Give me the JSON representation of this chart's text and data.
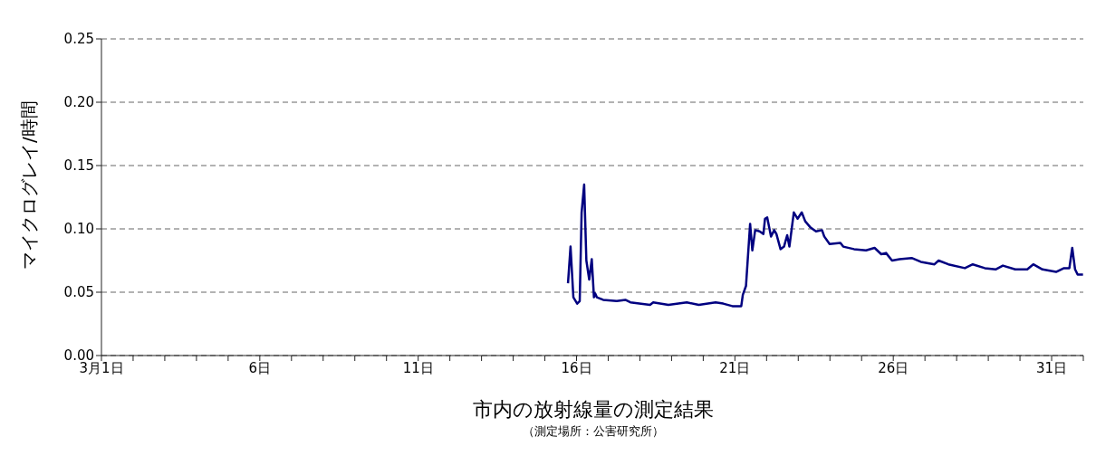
{
  "chart_data": {
    "type": "line",
    "title": "市内の放射線量の測定結果",
    "subtitle": "（測定場所：公害研究所）",
    "ylabel": "マイクログレイ/時間",
    "marker": "none",
    "line_style": "solid",
    "grid": "y",
    "legend": false,
    "xlim": [
      1,
      32
    ],
    "xticks": [
      {
        "value": 1,
        "label": "3月1日"
      },
      {
        "value": 2,
        "label": null
      },
      {
        "value": 3,
        "label": null
      },
      {
        "value": 4,
        "label": null
      },
      {
        "value": 5,
        "label": null
      },
      {
        "value": 6,
        "label": "6日"
      },
      {
        "value": 7,
        "label": null
      },
      {
        "value": 8,
        "label": null
      },
      {
        "value": 9,
        "label": null
      },
      {
        "value": 10,
        "label": null
      },
      {
        "value": 11,
        "label": "11日"
      },
      {
        "value": 12,
        "label": null
      },
      {
        "value": 13,
        "label": null
      },
      {
        "value": 14,
        "label": null
      },
      {
        "value": 15,
        "label": null
      },
      {
        "value": 16,
        "label": "16日"
      },
      {
        "value": 17,
        "label": null
      },
      {
        "value": 18,
        "label": null
      },
      {
        "value": 19,
        "label": null
      },
      {
        "value": 20,
        "label": null
      },
      {
        "value": 21,
        "label": "21日"
      },
      {
        "value": 22,
        "label": null
      },
      {
        "value": 23,
        "label": null
      },
      {
        "value": 24,
        "label": null
      },
      {
        "value": 25,
        "label": null
      },
      {
        "value": 26,
        "label": "26日"
      },
      {
        "value": 27,
        "label": null
      },
      {
        "value": 28,
        "label": null
      },
      {
        "value": 29,
        "label": null
      },
      {
        "value": 30,
        "label": null
      },
      {
        "value": 31,
        "label": "31日"
      },
      {
        "value": 32,
        "label": null
      }
    ],
    "ylim": [
      0,
      0.25
    ],
    "yticks": [
      {
        "value": 0,
        "label": "0.00"
      },
      {
        "value": 0.05,
        "label": "0.05"
      },
      {
        "value": 0.1,
        "label": "0.10"
      },
      {
        "value": 0.15,
        "label": "0.15"
      },
      {
        "value": 0.2,
        "label": "0.20"
      },
      {
        "value": 0.25,
        "label": "0.25"
      }
    ],
    "series": [
      {
        "color": "#000080",
        "x": [
          15.73,
          15.81,
          15.9,
          16.02,
          16.1,
          16.16,
          16.24,
          16.31,
          16.4,
          16.48,
          16.55,
          16.59,
          16.64,
          16.84,
          17.27,
          17.54,
          17.7,
          18.32,
          18.42,
          18.9,
          19.48,
          19.86,
          20.39,
          20.63,
          20.92,
          21.2,
          21.25,
          21.35,
          21.48,
          21.55,
          21.64,
          21.78,
          21.9,
          21.95,
          22.02,
          22.14,
          22.24,
          22.31,
          22.44,
          22.55,
          22.65,
          22.72,
          22.86,
          22.98,
          23.11,
          23.22,
          23.39,
          23.56,
          23.75,
          23.82,
          23.99,
          24.33,
          24.42,
          24.76,
          25.14,
          25.41,
          25.62,
          25.77,
          25.96,
          26.2,
          26.58,
          26.87,
          27.3,
          27.43,
          27.74,
          28.26,
          28.51,
          28.89,
          29.23,
          29.46,
          29.85,
          30.23,
          30.42,
          30.71,
          31.14,
          31.39,
          31.56,
          31.65,
          31.74,
          31.82,
          31.99
        ],
        "values": [
          0.057,
          0.086,
          0.046,
          0.041,
          0.043,
          0.113,
          0.135,
          0.075,
          0.06,
          0.076,
          0.046,
          0.049,
          0.046,
          0.044,
          0.043,
          0.044,
          0.042,
          0.04,
          0.042,
          0.04,
          0.042,
          0.04,
          0.042,
          0.041,
          0.039,
          0.039,
          0.048,
          0.055,
          0.104,
          0.083,
          0.099,
          0.098,
          0.096,
          0.108,
          0.109,
          0.094,
          0.099,
          0.096,
          0.084,
          0.086,
          0.095,
          0.086,
          0.113,
          0.108,
          0.113,
          0.106,
          0.101,
          0.098,
          0.099,
          0.094,
          0.088,
          0.089,
          0.086,
          0.084,
          0.083,
          0.085,
          0.08,
          0.081,
          0.075,
          0.076,
          0.077,
          0.074,
          0.072,
          0.075,
          0.072,
          0.069,
          0.072,
          0.069,
          0.068,
          0.071,
          0.068,
          0.068,
          0.072,
          0.068,
          0.066,
          0.069,
          0.069,
          0.085,
          0.068,
          0.064,
          0.064
        ]
      }
    ]
  }
}
